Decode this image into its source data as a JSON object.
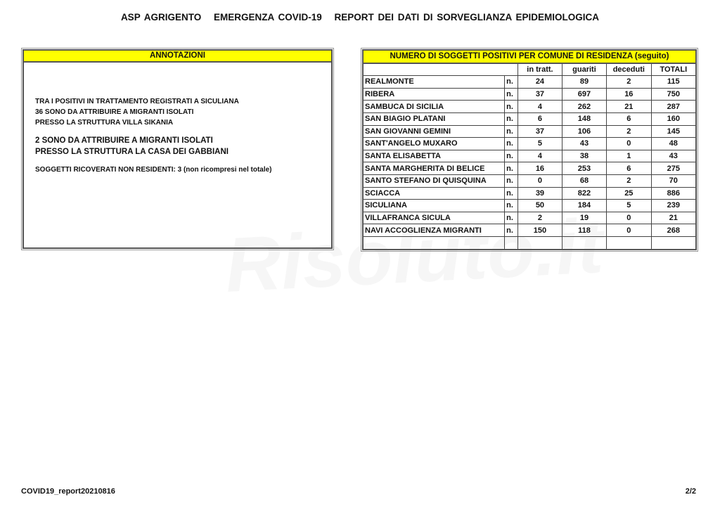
{
  "header": {
    "parts": [
      "ASP AGRIGENTO",
      "EMERGENZA COVID-19",
      "REPORT DEI DATI DI SORVEGLIANZA EPIDEMIOLOGICA"
    ]
  },
  "annotations": {
    "title": "ANNOTAZIONI",
    "lines1": [
      "TRA I POSITIVI IN TRATTAMENTO REGISTRATI A SICULIANA",
      "36 SONO DA ATTRIBUIRE A MIGRANTI ISOLATI",
      "PRESSO LA STRUTTURA VILLA SIKANIA"
    ],
    "lines2": [
      "2 SONO DA ATTRIBUIRE A MIGRANTI ISOLATI",
      "PRESSO LA STRUTTURA LA CASA DEI GABBIANI"
    ],
    "note": "SOGGETTI RICOVERATI NON RESIDENTI: 3 (non ricompresi nel totale)"
  },
  "table": {
    "title": "NUMERO DI SOGGETTI POSITIVI PER COMUNE DI RESIDENZA (seguito)",
    "columns": [
      "in tratt.",
      "guariti",
      "deceduti",
      "TOTALI"
    ],
    "rows": [
      {
        "comune": "REALMONTE",
        "unit": "n.",
        "values": [
          "24",
          "89",
          "2",
          "115"
        ]
      },
      {
        "comune": "RIBERA",
        "unit": "n.",
        "values": [
          "37",
          "697",
          "16",
          "750"
        ]
      },
      {
        "comune": "SAMBUCA DI SICILIA",
        "unit": "n.",
        "values": [
          "4",
          "262",
          "21",
          "287"
        ]
      },
      {
        "comune": "SAN BIAGIO PLATANI",
        "unit": "n.",
        "values": [
          "6",
          "148",
          "6",
          "160"
        ]
      },
      {
        "comune": "SAN GIOVANNI GEMINI",
        "unit": "n.",
        "values": [
          "37",
          "106",
          "2",
          "145"
        ]
      },
      {
        "comune": "SANT'ANGELO MUXARO",
        "unit": "n.",
        "values": [
          "5",
          "43",
          "0",
          "48"
        ]
      },
      {
        "comune": "SANTA ELISABETTA",
        "unit": "n.",
        "values": [
          "4",
          "38",
          "1",
          "43"
        ]
      },
      {
        "comune": "SANTA MARGHERITA DI BELICE",
        "unit": "n.",
        "values": [
          "16",
          "253",
          "6",
          "275"
        ]
      },
      {
        "comune": "SANTO STEFANO DI QUISQUINA",
        "unit": "n.",
        "values": [
          "0",
          "68",
          "2",
          "70"
        ]
      },
      {
        "comune": "SCIACCA",
        "unit": "n.",
        "values": [
          "39",
          "822",
          "25",
          "886"
        ]
      },
      {
        "comune": "SICULIANA",
        "unit": "n.",
        "values": [
          "50",
          "184",
          "5",
          "239"
        ]
      },
      {
        "comune": "VILLAFRANCA SICULA",
        "unit": "n.",
        "values": [
          "2",
          "19",
          "0",
          "21"
        ]
      },
      {
        "comune": "NAVI ACCOGLIENZA MIGRANTI",
        "unit": "n.",
        "values": [
          "150",
          "118",
          "0",
          "268"
        ]
      }
    ]
  },
  "watermark": "Risoluto.it",
  "footer": {
    "report_id": "COVID19_report20210816",
    "page": "2/2"
  }
}
